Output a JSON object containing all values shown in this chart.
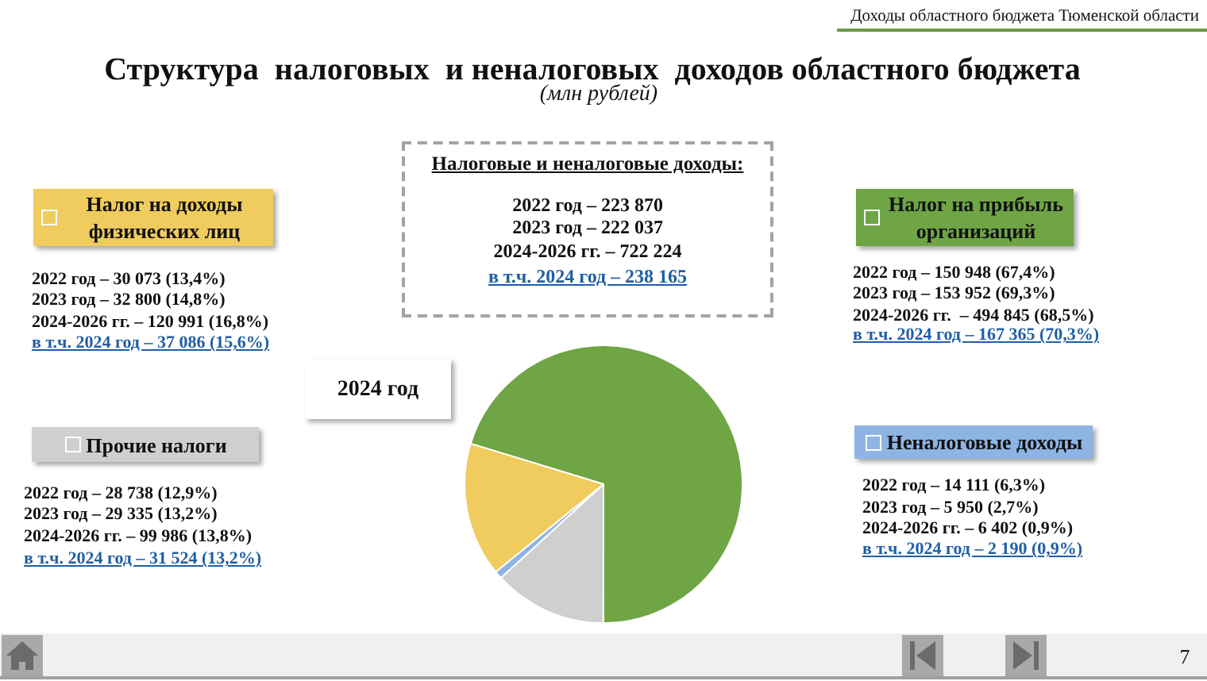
{
  "chart_data": {
    "type": "pie",
    "title": "Структура  налоговых  и неналоговых  доходов областного бюджета",
    "subtitle": "(млн рублей)",
    "categories": [
      "Налог на прибыль организаций",
      "Прочие налоги",
      "Неналоговые доходы",
      "Налог на доходы физических лиц"
    ],
    "values": [
      70.3,
      13.2,
      0.9,
      15.6
    ],
    "colors": [
      "#6fa545",
      "#cfcfcf",
      "#8eb4e3",
      "#f0cb5e"
    ],
    "legend": "top",
    "annotations": [
      "Доходы областного бюджета Тюменской области",
      "Налоговые и неналоговые доходы:",
      "2022 год – 223 870",
      "2023 год – 222 037",
      "2024-2026 гг. – 722 224",
      "в т.ч. 2024 год – 238 165",
      "2022 год – 150 948 (67,4%)",
      "2023 год – 153 952 (69,3%)",
      "2024-2026 гг.  – 494 845 (68,5%)",
      "в т.ч. 2024 год – 167 365 (70,3%)",
      "2022 год – 28 738 (12,9%)",
      "2023 год – 29 335 (13,2%)",
      "2024-2026 гг. – 99 986 (13,8%)",
      "в т.ч. 2024 год – 31 524 (13,2%)",
      "2022 год – 14 111 (6,3%)",
      "2023 год – 5 950 (2,7%)",
      "2024-2026 гг. – 6 402 (0,9%)",
      "в т.ч. 2024 год – 2 190 (0,9%)",
      "2022 год – 30 073 (13,4%)",
      "2023 год – 32 800 (14,8%)",
      "2024-2026 гг. – 120 991 (16,8%)",
      "в т.ч. 2024 год – 37 086 (15,6%)",
      "2024 год",
      "7"
    ]
  }
}
